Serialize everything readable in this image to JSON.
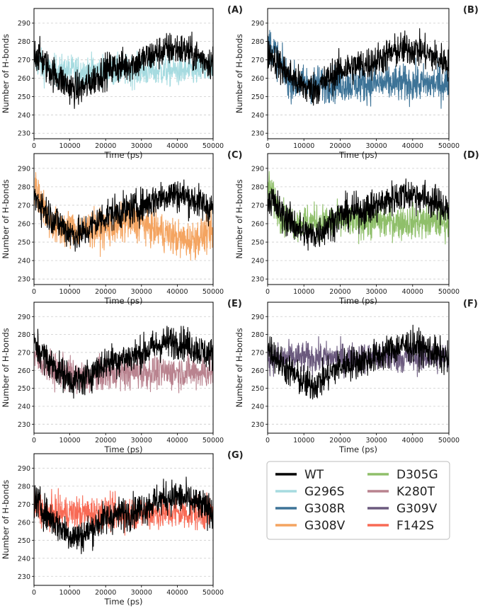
{
  "chart_data": [
    {
      "type": "line",
      "panel_label": "(A)",
      "xlabel": "Time (ps)",
      "ylabel": "Number of H-bonds",
      "xlim": [
        0,
        50000
      ],
      "ylim": [
        227,
        298
      ],
      "xticks": [
        0,
        10000,
        20000,
        30000,
        40000,
        50000
      ],
      "yticks": [
        230,
        240,
        250,
        260,
        270,
        280,
        290
      ],
      "grid": "horizontal",
      "series": [
        {
          "name": "G296S",
          "color": "#a6dbe0",
          "mean": 264,
          "spread": 11
        },
        {
          "name": "WT",
          "color": "#000000",
          "mean": 266,
          "spread": 12
        }
      ]
    },
    {
      "type": "line",
      "panel_label": "(B)",
      "xlabel": "Time (ps)",
      "ylabel": "Number of H-bonds",
      "xlim": [
        0,
        50000
      ],
      "ylim": [
        227,
        298
      ],
      "xticks": [
        0,
        10000,
        20000,
        30000,
        40000,
        50000
      ],
      "yticks": [
        230,
        240,
        250,
        260,
        270,
        280,
        290
      ],
      "grid": "horizontal",
      "series": [
        {
          "name": "G308R",
          "color": "#3d7397",
          "mean": 259,
          "spread": 13
        },
        {
          "name": "WT",
          "color": "#000000",
          "mean": 266,
          "spread": 12
        }
      ]
    },
    {
      "type": "line",
      "panel_label": "(C)",
      "xlabel": "Time (ps)",
      "ylabel": "Number of H-bonds",
      "xlim": [
        0,
        50000
      ],
      "ylim": [
        227,
        298
      ],
      "xticks": [
        0,
        10000,
        20000,
        30000,
        40000,
        50000
      ],
      "yticks": [
        230,
        240,
        250,
        260,
        270,
        280,
        290
      ],
      "grid": "horizontal",
      "series": [
        {
          "name": "G308V",
          "color": "#f4a460",
          "mean": 257,
          "spread": 13
        },
        {
          "name": "WT",
          "color": "#000000",
          "mean": 266,
          "spread": 12
        }
      ]
    },
    {
      "type": "line",
      "panel_label": "(D)",
      "xlabel": "Time (ps)",
      "ylabel": "Number of H-bonds",
      "xlim": [
        0,
        50000
      ],
      "ylim": [
        227,
        298
      ],
      "xticks": [
        0,
        10000,
        20000,
        30000,
        40000,
        50000
      ],
      "yticks": [
        230,
        240,
        250,
        260,
        270,
        280,
        290
      ],
      "grid": "horizontal",
      "series": [
        {
          "name": "D305G",
          "color": "#8fbf6a",
          "mean": 261,
          "spread": 12
        },
        {
          "name": "WT",
          "color": "#000000",
          "mean": 266,
          "spread": 12
        }
      ]
    },
    {
      "type": "line",
      "panel_label": "(E)",
      "xlabel": "Time (ps)",
      "ylabel": "Number of H-bonds",
      "xlim": [
        0,
        50000
      ],
      "ylim": [
        225,
        298
      ],
      "xticks": [
        0,
        10000,
        20000,
        30000,
        40000,
        50000
      ],
      "yticks": [
        230,
        240,
        250,
        260,
        270,
        280,
        290
      ],
      "grid": "horizontal",
      "series": [
        {
          "name": "K280T",
          "color": "#b9838f",
          "mean": 259,
          "spread": 12
        },
        {
          "name": "WT",
          "color": "#000000",
          "mean": 266,
          "spread": 12
        }
      ]
    },
    {
      "type": "line",
      "panel_label": "(F)",
      "xlabel": "Time (ps)",
      "ylabel": "Number of H-bonds",
      "xlim": [
        0,
        50000
      ],
      "ylim": [
        225,
        298
      ],
      "xticks": [
        0,
        10000,
        20000,
        30000,
        40000,
        50000
      ],
      "yticks": [
        230,
        240,
        250,
        260,
        270,
        280,
        290
      ],
      "grid": "horizontal",
      "series": [
        {
          "name": "G309V",
          "color": "#6b5a7e",
          "mean": 267,
          "spread": 11
        },
        {
          "name": "WT",
          "color": "#000000",
          "mean": 264,
          "spread": 12
        }
      ]
    },
    {
      "type": "line",
      "panel_label": "(G)",
      "xlabel": "Time (ps)",
      "ylabel": "Number of H-bonds",
      "xlim": [
        0,
        50000
      ],
      "ylim": [
        225,
        298
      ],
      "xticks": [
        0,
        10000,
        20000,
        30000,
        40000,
        50000
      ],
      "yticks": [
        230,
        240,
        250,
        260,
        270,
        280,
        290
      ],
      "grid": "horizontal",
      "series": [
        {
          "name": "F142S",
          "color": "#f86a55",
          "mean": 265,
          "spread": 12
        },
        {
          "name": "WT",
          "color": "#000000",
          "mean": 264,
          "spread": 12
        }
      ]
    }
  ],
  "legend": [
    {
      "name": "WT",
      "color": "#000000"
    },
    {
      "name": "G296S",
      "color": "#a6dbe0"
    },
    {
      "name": "G308R",
      "color": "#3d7397"
    },
    {
      "name": "G308V",
      "color": "#f4a460"
    },
    {
      "name": "D305G",
      "color": "#8fbf6a"
    },
    {
      "name": "K280T",
      "color": "#b9838f"
    },
    {
      "name": "G309V",
      "color": "#6b5a7e"
    },
    {
      "name": "F142S",
      "color": "#f86a55"
    }
  ]
}
